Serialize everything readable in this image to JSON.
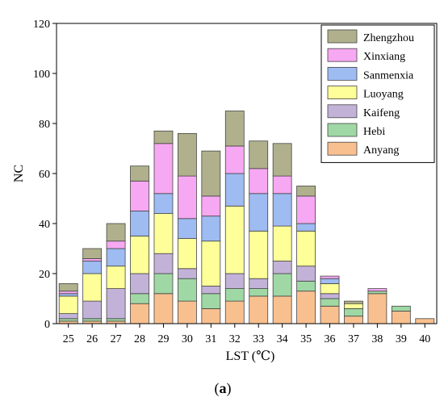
{
  "chart_data": {
    "type": "bar",
    "stacked": true,
    "xlabel": "LST (℃)",
    "ylabel": "NC",
    "ylim": [
      0,
      120
    ],
    "yticks": [
      0,
      20,
      40,
      60,
      80,
      100,
      120
    ],
    "categories": [
      "25",
      "26",
      "27",
      "28",
      "29",
      "30",
      "31",
      "32",
      "33",
      "34",
      "35",
      "36",
      "37",
      "38",
      "39",
      "40"
    ],
    "series": [
      {
        "name": "Anyang",
        "color": "#f9c08f",
        "values": [
          1,
          1,
          1,
          8,
          12,
          9,
          6,
          9,
          11,
          11,
          13,
          7,
          3,
          12,
          5,
          2
        ]
      },
      {
        "name": "Hebi",
        "color": "#9fd8a4",
        "values": [
          1,
          1,
          1,
          4,
          8,
          9,
          6,
          5,
          3,
          9,
          4,
          3,
          3,
          1,
          2,
          0
        ]
      },
      {
        "name": "Kaifeng",
        "color": "#c3b2d8",
        "values": [
          2,
          7,
          12,
          8,
          8,
          4,
          3,
          6,
          4,
          5,
          6,
          2,
          0,
          0,
          0,
          0
        ]
      },
      {
        "name": "Luoyang",
        "color": "#ffff99",
        "values": [
          7,
          11,
          9,
          15,
          16,
          12,
          18,
          27,
          19,
          14,
          14,
          4,
          2,
          0,
          0,
          0
        ]
      },
      {
        "name": "Sanmenxia",
        "color": "#9ebbf2",
        "values": [
          1,
          5,
          7,
          10,
          8,
          8,
          10,
          13,
          15,
          13,
          3,
          2,
          0,
          0,
          0,
          0
        ]
      },
      {
        "name": "Xinxiang",
        "color": "#f7a8f2",
        "values": [
          1,
          1,
          3,
          12,
          20,
          17,
          8,
          11,
          10,
          7,
          11,
          1,
          0,
          1,
          0,
          0
        ]
      },
      {
        "name": "Zhengzhou",
        "color": "#b0b18c",
        "values": [
          3,
          4,
          7,
          6,
          5,
          17,
          18,
          14,
          11,
          13,
          4,
          0,
          1,
          0,
          0,
          0
        ]
      }
    ],
    "legend": {
      "position": "top-right",
      "order": [
        "Zhengzhou",
        "Xinxiang",
        "Sanmenxia",
        "Luoyang",
        "Kaifeng",
        "Hebi",
        "Anyang"
      ]
    },
    "grid": false
  },
  "caption": {
    "open": "(",
    "letter": "a",
    "close": ")"
  }
}
